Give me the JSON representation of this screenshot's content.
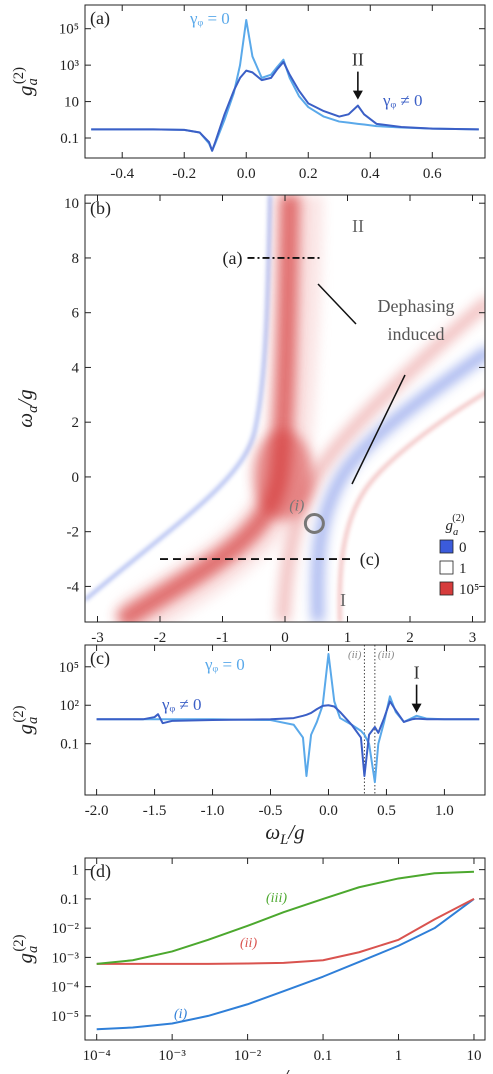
{
  "chart_data": [
    {
      "type": "line",
      "panel": "(a)",
      "ylabel": {
        "text": "g",
        "sub": "a",
        "sup": "(2)"
      },
      "xscale": "linear",
      "yscale": "log",
      "xlim": [
        -0.52,
        0.77
      ],
      "ylim": [
        0.008,
        2000000
      ],
      "xticks": [
        -0.4,
        -0.2,
        {
          "value": 0,
          "label": "0.0"
        },
        0.2,
        0.4,
        0.6
      ],
      "yticks": [
        0.1,
        10,
        {
          "value": 1000,
          "label": "10³"
        },
        {
          "value": 100000,
          "label": "10⁵"
        }
      ],
      "x": [
        -0.5,
        -0.3,
        -0.2,
        -0.15,
        -0.12,
        -0.11,
        -0.1,
        -0.07,
        -0.04,
        -0.02,
        0,
        0.02,
        0.05,
        0.08,
        0.1,
        0.12,
        0.14,
        0.17,
        0.2,
        0.25,
        0.3,
        0.33,
        0.36,
        0.38,
        0.42,
        0.5,
        0.6,
        0.75
      ],
      "series": [
        {
          "name": "γᵩ = 0",
          "color": "#5aa9ea",
          "values": [
            0.3,
            0.3,
            0.28,
            0.2,
            0.05,
            0.02,
            0.05,
            1,
            30,
            1000,
            300000,
            3000,
            200,
            300,
            800,
            2000,
            200,
            20,
            5,
            1.5,
            0.8,
            0.7,
            0.6,
            0.55,
            0.45,
            0.38,
            0.33,
            0.3
          ]
        },
        {
          "name": "γᵩ ≠ 0",
          "color": "#3b5fc6",
          "values": [
            0.3,
            0.3,
            0.28,
            0.2,
            0.06,
            0.02,
            0.06,
            2,
            40,
            200,
            500,
            400,
            150,
            200,
            600,
            1500,
            300,
            40,
            8,
            3,
            1.5,
            2,
            6,
            2,
            0.6,
            0.4,
            0.33,
            0.3
          ]
        }
      ],
      "annotations": [
        {
          "text": "II",
          "x": 0.36
        }
      ]
    },
    {
      "type": "heatmap",
      "panel": "(b)",
      "ylabel": {
        "text": "ω",
        "sub": "a",
        "rest": "/g"
      },
      "xlim": [
        -3.2,
        3.2
      ],
      "ylim": [
        -5.3,
        10.3
      ],
      "xticks": [
        -3,
        -2,
        -1,
        0,
        1,
        2,
        3
      ],
      "yticks": [
        -4,
        -2,
        0,
        2,
        4,
        6,
        8,
        10
      ],
      "cuts": [
        {
          "label": "(a)",
          "y": 8,
          "x": [
            -0.6,
            0.6
          ]
        },
        {
          "label": "(c)",
          "y": -3,
          "x": [
            -2,
            1.1
          ]
        }
      ],
      "points": [
        {
          "label": "(i)",
          "x": 0.47,
          "y": -1.7
        }
      ],
      "labels": [
        "II",
        "I"
      ],
      "annotation_text": [
        "Dephasing",
        "induced"
      ],
      "colorbar": {
        "title": {
          "text": "g",
          "sub": "a",
          "sup": "(2)"
        },
        "colors": [
          "#3b5bdb",
          "#ffffff",
          "#d63c3c"
        ],
        "labels": [
          "0",
          "1",
          "10⁵"
        ]
      }
    },
    {
      "type": "line",
      "panel": "(c)",
      "ylabel": {
        "text": "g",
        "sub": "a",
        "sup": "(2)"
      },
      "xlabel": {
        "text": "ω",
        "sub": "L",
        "rest": "/g"
      },
      "xscale": "linear",
      "yscale": "log",
      "xlim": [
        -2.1,
        1.35
      ],
      "ylim": [
        1e-05,
        5000000
      ],
      "xticks": [
        {
          "value": -2,
          "label": "-2.0"
        },
        -1.5,
        {
          "value": -1,
          "label": "-1.0"
        },
        -0.5,
        {
          "value": 0,
          "label": "0.0"
        },
        0.5,
        {
          "value": 1,
          "label": "1.0"
        }
      ],
      "yticks": [
        0.1,
        {
          "value": 100,
          "label": "10²"
        },
        {
          "value": 100000,
          "label": "10⁵"
        }
      ],
      "x": [
        -2.0,
        -1.6,
        -1.5,
        -1.47,
        -1.43,
        -1.35,
        -1.0,
        -0.5,
        -0.3,
        -0.22,
        -0.19,
        -0.15,
        -0.1,
        -0.05,
        0,
        0.05,
        0.1,
        0.2,
        0.28,
        0.31,
        0.35,
        0.4,
        0.43,
        0.48,
        0.53,
        0.58,
        0.65,
        0.72,
        0.76,
        0.85,
        1.0,
        1.3
      ],
      "series": [
        {
          "name": "γᵩ = 0",
          "color": "#5aa9ea",
          "values": [
            8,
            8,
            8,
            8,
            8,
            8,
            8,
            7,
            3,
            0.3,
            0.0003,
            0.5,
            5,
            100,
            1000000,
            200,
            10,
            3,
            1,
            0.5,
            0.1,
            0.0001,
            0.1,
            5,
            500,
            30,
            5,
            10,
            15,
            9,
            8,
            8
          ]
        },
        {
          "name": "γᵩ ≠ 0",
          "color": "#3b5fc6",
          "values": [
            8,
            8,
            12,
            20,
            4,
            6,
            7,
            8,
            10,
            15,
            18,
            25,
            50,
            90,
            100,
            80,
            30,
            3,
            0.3,
            0.0003,
            0.5,
            2,
            0.7,
            10,
            200,
            40,
            5,
            8,
            9,
            8,
            8,
            8
          ]
        }
      ],
      "markers": [
        {
          "label": "(ii)",
          "x": 0.31
        },
        {
          "label": "(iii)",
          "x": 0.4
        }
      ],
      "annotations": [
        {
          "text": "I",
          "x": 0.76
        }
      ]
    },
    {
      "type": "line",
      "panel": "(d)",
      "ylabel": {
        "text": "g",
        "sub": "a",
        "sup": "(2)"
      },
      "xlabel": {
        "text": "γ",
        "sub": "ϕ",
        "rest": "/γ",
        "sub2": "b"
      },
      "xscale": "log",
      "yscale": "log",
      "xlim": [
        7e-05,
        14
      ],
      "ylim": [
        1.5e-06,
        2.5
      ],
      "xticks": [
        {
          "value": 0.0001,
          "label": "10⁻⁴"
        },
        {
          "value": 0.001,
          "label": "10⁻³"
        },
        {
          "value": 0.01,
          "label": "10⁻²"
        },
        0.1,
        1,
        10
      ],
      "yticks": [
        {
          "value": 1e-05,
          "label": "10⁻⁵"
        },
        {
          "value": 0.0001,
          "label": "10⁻⁴"
        },
        {
          "value": 0.001,
          "label": "10⁻³"
        },
        {
          "value": 0.01,
          "label": "10⁻²"
        },
        0.1,
        1
      ],
      "x": [
        0.0001,
        0.0003,
        0.001,
        0.003,
        0.01,
        0.03,
        0.1,
        0.3,
        1,
        3,
        10
      ],
      "series": [
        {
          "name": "(i)",
          "color": "#2f7fd8",
          "values": [
            3.5e-06,
            4e-06,
            5.5e-06,
            1e-05,
            2.5e-05,
            7e-05,
            0.00022,
            0.0007,
            0.0025,
            0.01,
            0.1
          ]
        },
        {
          "name": "(ii)",
          "color": "#d9534f",
          "values": [
            0.0006,
            0.0006,
            0.0006,
            0.0006,
            0.00062,
            0.00065,
            0.0008,
            0.0015,
            0.004,
            0.02,
            0.1
          ]
        },
        {
          "name": "(iii)",
          "color": "#4ca82e",
          "values": [
            0.0006,
            0.0008,
            0.0016,
            0.004,
            0.012,
            0.035,
            0.1,
            0.25,
            0.5,
            0.75,
            0.85
          ]
        }
      ]
    }
  ]
}
